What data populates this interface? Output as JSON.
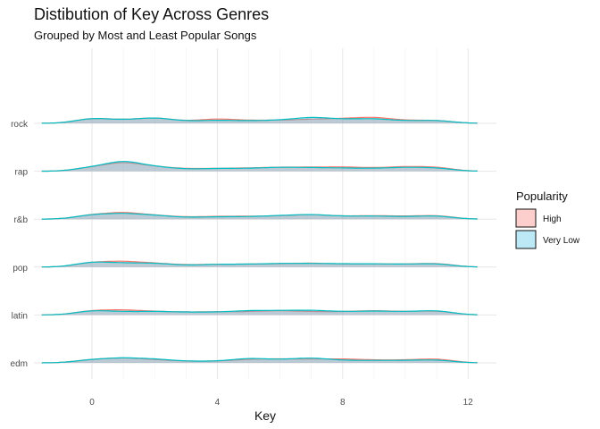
{
  "chart_data": {
    "type": "area",
    "subtype": "ridgeline-density",
    "title": "Distibution of Key Across Genres",
    "subtitle": "Grouped by Most and Least Popular Songs",
    "xlabel": "Key",
    "ylabel": "",
    "xlim": [
      -1.8,
      12.7
    ],
    "x_ticks": [
      0,
      4,
      8,
      12
    ],
    "categories": [
      "edm",
      "latin",
      "pop",
      "r&b",
      "rap",
      "rock"
    ],
    "grid": true,
    "legend": {
      "title": "Popularity",
      "position": "right",
      "entries": [
        "High",
        "Very Low"
      ]
    },
    "colors": {
      "High": {
        "line": "#f8766d",
        "fill": "#f8766d"
      },
      "Very Low": {
        "line": "#00bfc4",
        "fill": "#41bfe6"
      }
    },
    "x": [
      0,
      1,
      2,
      3,
      4,
      5,
      6,
      7,
      8,
      9,
      10,
      11
    ],
    "series": [
      {
        "name": "High",
        "genre": "edm",
        "density": [
          0.09,
          0.13,
          0.08,
          0.04,
          0.04,
          0.09,
          0.1,
          0.09,
          0.1,
          0.07,
          0.07,
          0.11
        ]
      },
      {
        "name": "Very Low",
        "genre": "edm",
        "density": [
          0.09,
          0.13,
          0.1,
          0.04,
          0.04,
          0.12,
          0.08,
          0.13,
          0.06,
          0.06,
          0.06,
          0.08
        ]
      },
      {
        "name": "High",
        "genre": "latin",
        "density": [
          0.12,
          0.13,
          0.09,
          0.07,
          0.08,
          0.08,
          0.11,
          0.08,
          0.08,
          0.11,
          0.08,
          0.11
        ]
      },
      {
        "name": "Very Low",
        "genre": "latin",
        "density": [
          0.12,
          0.08,
          0.09,
          0.07,
          0.07,
          0.11,
          0.11,
          0.12,
          0.08,
          0.1,
          0.08,
          0.12
        ]
      },
      {
        "name": "High",
        "genre": "pop",
        "density": [
          0.13,
          0.15,
          0.1,
          0.05,
          0.07,
          0.07,
          0.08,
          0.1,
          0.07,
          0.08,
          0.07,
          0.1
        ]
      },
      {
        "name": "Very Low",
        "genre": "pop",
        "density": [
          0.14,
          0.1,
          0.1,
          0.04,
          0.07,
          0.07,
          0.09,
          0.09,
          0.08,
          0.08,
          0.07,
          0.09
        ]
      },
      {
        "name": "High",
        "genre": "r&b",
        "density": [
          0.12,
          0.18,
          0.1,
          0.05,
          0.07,
          0.07,
          0.08,
          0.12,
          0.07,
          0.09,
          0.07,
          0.1
        ]
      },
      {
        "name": "Very Low",
        "genre": "r&b",
        "density": [
          0.12,
          0.15,
          0.1,
          0.04,
          0.06,
          0.06,
          0.09,
          0.12,
          0.07,
          0.08,
          0.06,
          0.09
        ]
      },
      {
        "name": "High",
        "genre": "rap",
        "density": [
          0.11,
          0.24,
          0.12,
          0.06,
          0.07,
          0.08,
          0.1,
          0.1,
          0.11,
          0.08,
          0.12,
          0.11
        ]
      },
      {
        "name": "Very Low",
        "genre": "rap",
        "density": [
          0.11,
          0.28,
          0.12,
          0.05,
          0.07,
          0.07,
          0.1,
          0.09,
          0.08,
          0.07,
          0.1,
          0.09
        ]
      },
      {
        "name": "High",
        "genre": "rock",
        "density": [
          0.14,
          0.08,
          0.15,
          0.05,
          0.12,
          0.07,
          0.08,
          0.1,
          0.12,
          0.16,
          0.07,
          0.08
        ]
      },
      {
        "name": "Very Low",
        "genre": "rock",
        "density": [
          0.14,
          0.08,
          0.15,
          0.05,
          0.08,
          0.06,
          0.08,
          0.16,
          0.1,
          0.12,
          0.06,
          0.08
        ]
      }
    ]
  }
}
